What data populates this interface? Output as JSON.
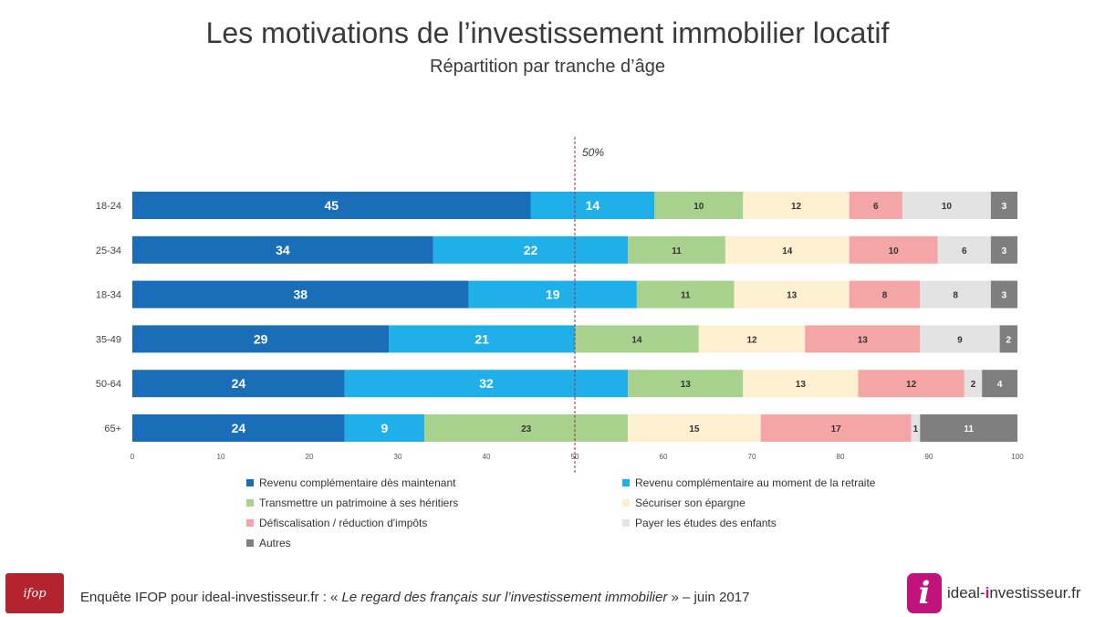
{
  "title": "Les motivations de l’investissement immobilier locatif",
  "subtitle": "Répartition par tranche d’âge",
  "reference_label": "50%",
  "footer": {
    "prefix": "Enquête IFOP pour ideal-investisseur.fr : « ",
    "italic": "Le regard des français sur l’investissement immobilier",
    "suffix": " » – juin 2017"
  },
  "logos": {
    "ifop": "ifop",
    "ideal_prefix": "ideal-",
    "ideal_highlight": "i",
    "ideal_suffix": "nvestisseur.fr",
    "ideal_icon": "i"
  },
  "chart_data": {
    "type": "bar",
    "orientation": "horizontal",
    "stacked": true,
    "categories": [
      "18-24",
      "25-34",
      "18-34",
      "35-49",
      "50-64",
      "65+"
    ],
    "xlim": [
      0,
      100
    ],
    "xticks": [
      0,
      10,
      20,
      30,
      40,
      50,
      60,
      70,
      80,
      90,
      100
    ],
    "reference_line": 50,
    "grid": false,
    "legend_position": "bottom",
    "series": [
      {
        "name": "Revenu complémentaire dès maintenant",
        "color": "#1a6eb8",
        "label_color": "#ffffff",
        "values": [
          45,
          34,
          38,
          29,
          24,
          24
        ]
      },
      {
        "name": "Revenu complémentaire au moment de la retraite",
        "color": "#1fb0ea",
        "label_color": "#ffffff",
        "values": [
          14,
          22,
          19,
          21,
          32,
          9
        ]
      },
      {
        "name": "Transmettre un patrimoine à ses héritiers",
        "color": "#a9d18e",
        "label_color": "#333333",
        "values": [
          10,
          11,
          11,
          14,
          13,
          23
        ]
      },
      {
        "name": "Sécuriser son épargne",
        "color": "#fdf0d0",
        "label_color": "#333333",
        "values": [
          12,
          14,
          13,
          12,
          13,
          15
        ]
      },
      {
        "name": "Défiscalisation / réduction d'impôts",
        "color": "#f4a6a6",
        "label_color": "#333333",
        "values": [
          6,
          10,
          8,
          13,
          12,
          17
        ]
      },
      {
        "name": "Payer les études des enfants",
        "color": "#e3e3e3",
        "label_color": "#333333",
        "values": [
          10,
          6,
          8,
          9,
          2,
          1
        ]
      },
      {
        "name": "Autres",
        "color": "#7f7f7f",
        "label_color": "#ffffff",
        "values": [
          3,
          3,
          3,
          2,
          4,
          11
        ]
      }
    ]
  }
}
